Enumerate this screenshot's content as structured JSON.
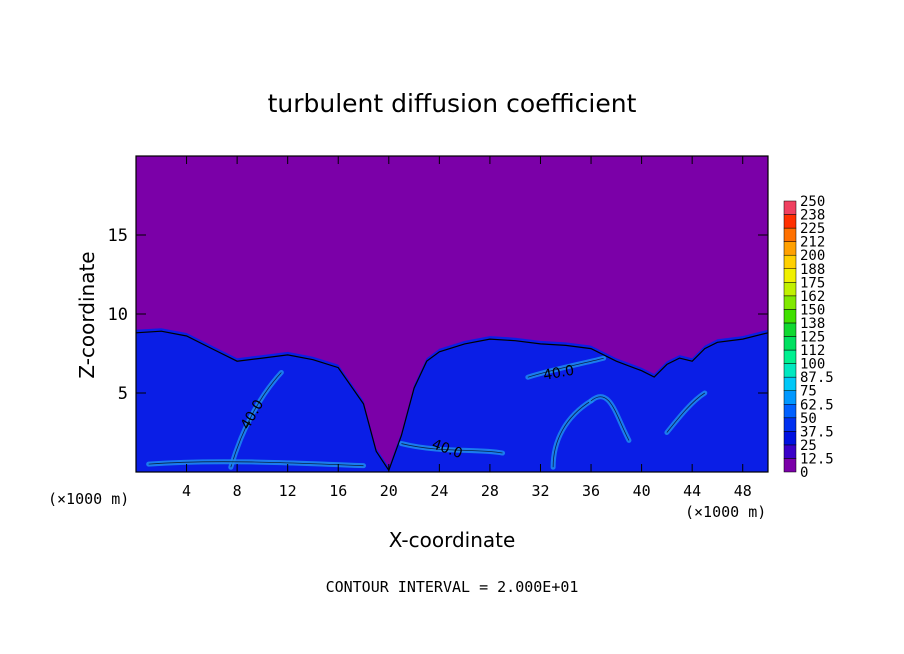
{
  "chart_data": {
    "type": "heatmap",
    "title": "turbulent diffusion coefficient",
    "xlabel": "X-coordinate",
    "ylabel": "Z-coordinate",
    "x_unit_left": "(×1000 m)",
    "x_unit_right": "(×1000 m)",
    "footer": "CONTOUR INTERVAL = 2.000E+01",
    "xlim": [
      0,
      50
    ],
    "ylim": [
      0,
      20
    ],
    "x_ticks": [
      "4",
      "8",
      "12",
      "16",
      "20",
      "24",
      "28",
      "32",
      "36",
      "40",
      "44",
      "48"
    ],
    "y_ticks": [
      "5",
      "10",
      "15"
    ],
    "contour_labels": [
      "40.0",
      "40.0",
      "40.0"
    ],
    "colorbar": {
      "labels": [
        "250",
        "238",
        "225",
        "212",
        "200",
        "188",
        "175",
        "162",
        "150",
        "138",
        "125",
        "112",
        "100",
        "87.5",
        "75",
        "62.5",
        "50",
        "37.5",
        "25",
        "12.5",
        "0"
      ],
      "colors": [
        "#7b00a8",
        "#3a00c8",
        "#0010e0",
        "#0030f0",
        "#0060ff",
        "#0098ff",
        "#00c8f8",
        "#00e8c0",
        "#00f090",
        "#00e060",
        "#10d830",
        "#40e000",
        "#80e800",
        "#c0f000",
        "#f0f000",
        "#ffd000",
        "#ffa000",
        "#ff7000",
        "#ff3000",
        "#f04060"
      ]
    },
    "background_color": "#7b00a8",
    "field_color": "#0a1ee6",
    "boundary_height_profile": [
      [
        0,
        9.0
      ],
      [
        2,
        9.1
      ],
      [
        4,
        8.8
      ],
      [
        6,
        8.0
      ],
      [
        8,
        7.2
      ],
      [
        10,
        7.4
      ],
      [
        12,
        7.6
      ],
      [
        14,
        7.3
      ],
      [
        16,
        6.8
      ],
      [
        18,
        4.5
      ],
      [
        19,
        1.5
      ],
      [
        20,
        0.3
      ],
      [
        21,
        2.5
      ],
      [
        22,
        5.5
      ],
      [
        23,
        7.2
      ],
      [
        24,
        7.8
      ],
      [
        26,
        8.3
      ],
      [
        28,
        8.6
      ],
      [
        30,
        8.5
      ],
      [
        32,
        8.3
      ],
      [
        34,
        8.2
      ],
      [
        36,
        8.0
      ],
      [
        38,
        7.2
      ],
      [
        40,
        6.6
      ],
      [
        41,
        6.2
      ],
      [
        42,
        7.0
      ],
      [
        43,
        7.4
      ],
      [
        44,
        7.2
      ],
      [
        45,
        8.0
      ],
      [
        46,
        8.4
      ],
      [
        48,
        8.6
      ],
      [
        50,
        9.0
      ]
    ]
  }
}
